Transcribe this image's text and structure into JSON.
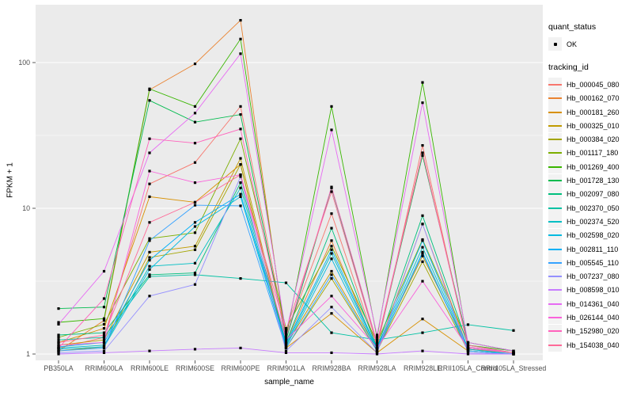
{
  "chart_data": {
    "type": "line",
    "title": "",
    "xlabel": "sample_name",
    "ylabel": "FPKM + 1",
    "y_scale": "log10",
    "y_ticks": [
      1,
      10,
      100
    ],
    "y_minor": [
      3.162,
      31.62
    ],
    "ylim": [
      0.9,
      250
    ],
    "grid": true,
    "legend_position": "right",
    "panel_background": "#EBEBEB",
    "gridline_color": "#FFFFFF",
    "tick_label_color": "#4D4D4D",
    "tick_mark_color": "#333333",
    "point_color": "#000000",
    "key_background": "#F2F2F2",
    "x_categories": [
      "PB350LA",
      "RRIM600LA",
      "RRIM600LE",
      "RRIM600SE",
      "RRIM600PE",
      "RRIM901LA",
      "RRIM928BA",
      "RRIM928LA",
      "RRIM928LE",
      "RRII105LA_Control",
      "RRII105LA_Stressed"
    ],
    "quant_status": {
      "title": "quant_status",
      "items": [
        {
          "label": "OK",
          "shape": "point"
        }
      ]
    },
    "legend_title": "tracking_id",
    "series": [
      {
        "name": "Hb_000045_080",
        "color": "#F8766D",
        "values": [
          1.1,
          1.3,
          14.7,
          20.6,
          50,
          1.35,
          9.2,
          1.1,
          27,
          1.1,
          1.02
        ]
      },
      {
        "name": "Hb_000162_070",
        "color": "#EA8331",
        "values": [
          1.05,
          1.7,
          65,
          98,
          195,
          1.2,
          6.0,
          1.05,
          7.8,
          1.08,
          1.02
        ]
      },
      {
        "name": "Hb_000181_260",
        "color": "#D89000",
        "values": [
          1.2,
          1.5,
          12,
          11,
          20,
          1.1,
          1.9,
          1.02,
          1.74,
          1.05,
          1.0
        ]
      },
      {
        "name": "Hb_000325_010",
        "color": "#C09B00",
        "values": [
          1.15,
          1.25,
          5.0,
          5.5,
          22,
          1.15,
          3.7,
          1.08,
          4.7,
          1.1,
          1.02
        ]
      },
      {
        "name": "Hb_000384_020",
        "color": "#A3A500",
        "values": [
          1.05,
          1.12,
          4.6,
          5.2,
          20,
          1.1,
          3.3,
          1.05,
          4.3,
          1.05,
          1.0
        ]
      },
      {
        "name": "Hb_001117_180",
        "color": "#7CAE00",
        "values": [
          1.3,
          1.6,
          6.2,
          6.8,
          30,
          1.5,
          5.5,
          1.2,
          6.1,
          1.2,
          1.05
        ]
      },
      {
        "name": "Hb_001269_400",
        "color": "#39B600",
        "values": [
          1.65,
          1.75,
          66,
          50,
          145,
          1.3,
          50,
          1.3,
          73,
          1.15,
          1.05
        ]
      },
      {
        "name": "Hb_001728_130",
        "color": "#00BB4E",
        "values": [
          2.05,
          2.1,
          55,
          39,
          44,
          1.25,
          13.8,
          1.15,
          23,
          1.2,
          1.05
        ]
      },
      {
        "name": "Hb_002097_080",
        "color": "#00BF7D",
        "values": [
          1.35,
          1.4,
          3.5,
          3.6,
          15,
          1.2,
          7.3,
          1.1,
          8.9,
          1.15,
          1.02
        ]
      },
      {
        "name": "Hb_002370_050",
        "color": "#00C1A3",
        "values": [
          1.25,
          1.3,
          3.4,
          3.5,
          3.3,
          3.08,
          1.4,
          1.25,
          1.4,
          1.59,
          1.45
        ]
      },
      {
        "name": "Hb_002374_520",
        "color": "#00BFC4",
        "values": [
          1.1,
          1.15,
          4.0,
          4.2,
          13.8,
          1.15,
          4.9,
          1.08,
          5.4,
          1.08,
          1.0
        ]
      },
      {
        "name": "Hb_002598_020",
        "color": "#00BAE0",
        "values": [
          1.08,
          1.12,
          3.8,
          7.5,
          12,
          1.12,
          4.5,
          1.05,
          5.0,
          1.05,
          1.0
        ]
      },
      {
        "name": "Hb_002811_110",
        "color": "#00B0F6",
        "values": [
          1.12,
          1.2,
          4.4,
          8.0,
          12.5,
          1.18,
          5.2,
          1.1,
          6.0,
          1.1,
          1.02
        ]
      },
      {
        "name": "Hb_005545_110",
        "color": "#35A2FF",
        "values": [
          1.05,
          1.1,
          6.0,
          10.5,
          10.4,
          1.1,
          3.5,
          1.05,
          4.9,
          1.05,
          1.0
        ]
      },
      {
        "name": "Hb_007237_080",
        "color": "#9590FF",
        "values": [
          1.02,
          1.05,
          2.5,
          3.0,
          16.5,
          1.05,
          2.1,
          1.02,
          7.8,
          1.02,
          1.0
        ]
      },
      {
        "name": "Hb_008598_010",
        "color": "#C77CFF",
        "values": [
          1.0,
          1.02,
          1.05,
          1.08,
          1.1,
          1.02,
          1.02,
          1.0,
          1.05,
          1.0,
          1.0
        ]
      },
      {
        "name": "Hb_014361_040",
        "color": "#E76BF3",
        "values": [
          1.6,
          3.7,
          24,
          45,
          115,
          1.4,
          34.5,
          1.35,
          53,
          1.2,
          1.05
        ]
      },
      {
        "name": "Hb_026144_040",
        "color": "#FA62DB",
        "values": [
          1.15,
          1.2,
          18,
          15,
          17,
          1.25,
          2.5,
          1.1,
          3.16,
          1.1,
          1.02
        ]
      },
      {
        "name": "Hb_152980_020",
        "color": "#FF62BC",
        "values": [
          1.1,
          2.4,
          30,
          28,
          35,
          1.3,
          14,
          1.2,
          24,
          1.12,
          1.02
        ]
      },
      {
        "name": "Hb_154038_040",
        "color": "#FF6A98",
        "values": [
          1.2,
          1.35,
          8.0,
          11,
          17,
          1.45,
          13,
          1.15,
          24,
          1.15,
          1.02
        ]
      }
    ]
  }
}
